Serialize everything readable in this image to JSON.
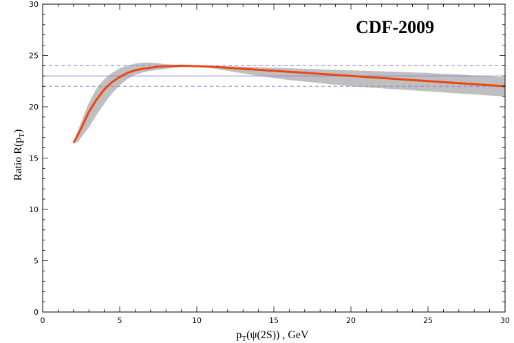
{
  "chart_data": {
    "type": "line",
    "title": "CDF-2009",
    "xlabel": {
      "main": "p",
      "sub": "T",
      "rest": "(ψ(2S)) , GeV"
    },
    "ylabel": {
      "main": "Ratio R(p",
      "sub": "T",
      "rest": ")"
    },
    "xlim": [
      0,
      30
    ],
    "ylim": [
      0,
      30
    ],
    "x_ticks": [
      0,
      5,
      10,
      15,
      20,
      25,
      30
    ],
    "y_ticks": [
      0,
      5,
      10,
      15,
      20,
      25,
      30
    ],
    "x_minor_step": 1,
    "y_minor_step": 1,
    "grid": false,
    "series": [
      {
        "role": "central",
        "color": "#ee4411",
        "x": [
          2.0,
          2.3,
          2.6,
          3.0,
          3.5,
          4.0,
          4.5,
          5.0,
          5.5,
          6.0,
          6.5,
          7.0,
          7.5,
          8.0,
          8.5,
          9.0,
          9.5,
          10.0,
          11,
          12,
          13,
          14,
          15,
          16,
          17,
          18,
          19,
          20,
          21,
          22,
          23,
          24,
          25,
          26,
          27,
          28,
          29,
          30
        ],
        "y": [
          16.5,
          17.3,
          18.2,
          19.5,
          20.7,
          21.7,
          22.4,
          22.9,
          23.3,
          23.55,
          23.7,
          23.8,
          23.9,
          23.95,
          23.98,
          24.0,
          23.98,
          23.95,
          23.9,
          23.8,
          23.7,
          23.6,
          23.5,
          23.4,
          23.3,
          23.2,
          23.1,
          23.0,
          22.9,
          22.8,
          22.7,
          22.6,
          22.5,
          22.4,
          22.3,
          22.2,
          22.1,
          22.0
        ]
      },
      {
        "role": "band",
        "color": "#bfbfbf",
        "x": [
          2.0,
          2.3,
          2.6,
          3.0,
          3.5,
          4.0,
          4.5,
          5.0,
          5.5,
          6.0,
          6.5,
          7.0,
          7.5,
          8.0,
          8.5,
          9.0,
          9.5,
          10.0,
          11,
          12,
          13,
          14,
          15,
          16,
          17,
          18,
          19,
          20,
          21,
          22,
          23,
          24,
          25,
          26,
          27,
          28,
          29,
          30
        ],
        "y_low": [
          16.4,
          16.6,
          17.2,
          18.0,
          19.2,
          20.3,
          21.3,
          22.1,
          22.7,
          23.1,
          23.35,
          23.5,
          23.6,
          23.7,
          23.78,
          23.85,
          23.9,
          23.92,
          23.75,
          23.5,
          23.25,
          23.0,
          22.8,
          22.6,
          22.45,
          22.3,
          22.15,
          22.0,
          21.9,
          21.8,
          21.7,
          21.6,
          21.5,
          21.4,
          21.3,
          21.2,
          21.1,
          21.0
        ],
        "y_high": [
          16.6,
          17.7,
          18.9,
          20.4,
          21.8,
          22.7,
          23.3,
          23.75,
          24.0,
          24.2,
          24.3,
          24.3,
          24.25,
          24.15,
          24.1,
          24.05,
          24.02,
          24.0,
          24.0,
          23.95,
          23.9,
          23.85,
          23.8,
          23.75,
          23.7,
          23.65,
          23.6,
          23.55,
          23.5,
          23.45,
          23.4,
          23.35,
          23.3,
          23.2,
          23.15,
          23.05,
          22.95,
          22.85
        ]
      }
    ],
    "reference_lines": [
      {
        "y": 23,
        "style": "solid",
        "color": "#8f7fe0"
      },
      {
        "y": 24,
        "style": "dashed",
        "color": "#8f7fe0"
      },
      {
        "y": 22,
        "style": "dashed",
        "color": "#8f7fe0"
      }
    ]
  }
}
